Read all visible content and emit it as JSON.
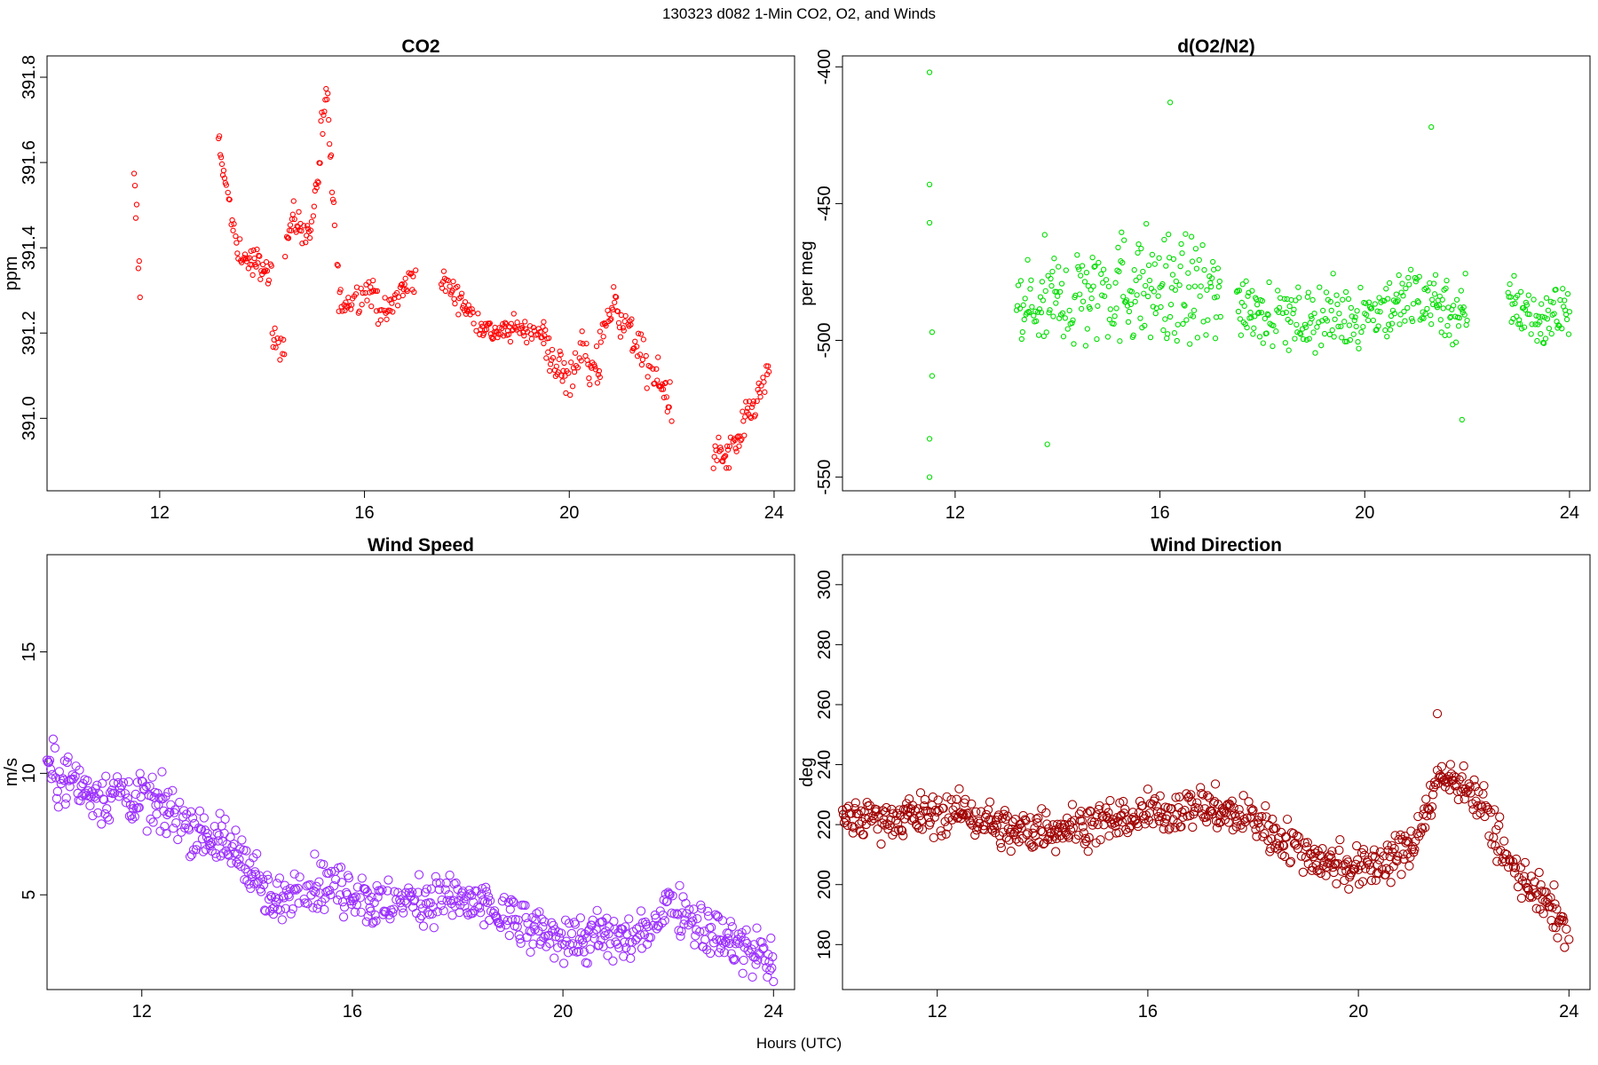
{
  "header": {
    "title": "130323   d082   1-Min CO2, O2, and Winds"
  },
  "footer": {
    "xlabel": "Hours (UTC)"
  },
  "chart_data": [
    {
      "type": "scatter",
      "title": "CO2",
      "xlabel": "Hours (UTC)",
      "ylabel": "ppm",
      "xlim": [
        9.8,
        24.4
      ],
      "ylim": [
        390.83,
        391.85
      ],
      "x_ticks": [
        12,
        16,
        20,
        24
      ],
      "y_ticks": [
        391.0,
        391.2,
        391.4,
        391.6,
        391.8
      ],
      "y_tick_labels": [
        "391.0",
        "391.2",
        "391.4",
        "391.6",
        "391.8"
      ],
      "color": "#ff0000",
      "marker": "small-open-circle",
      "grid": false,
      "segments": [
        {
          "x0": 11.5,
          "x1": 11.62,
          "knots": [
            [
              11.5,
              391.53
            ],
            [
              11.55,
              391.45
            ],
            [
              11.6,
              391.33
            ]
          ],
          "noise": 0.06
        },
        {
          "x0": 13.15,
          "x1": 14.2,
          "knots": [
            [
              13.15,
              391.66
            ],
            [
              13.35,
              391.5
            ],
            [
              13.5,
              391.4
            ],
            [
              13.7,
              391.37
            ],
            [
              14.0,
              391.36
            ],
            [
              14.2,
              391.32
            ]
          ],
          "noise": 0.025
        },
        {
          "x0": 14.2,
          "x1": 14.45,
          "knots": [
            [
              14.2,
              391.19
            ],
            [
              14.45,
              391.17
            ]
          ],
          "noise": 0.025
        },
        {
          "x0": 14.45,
          "x1": 15.0,
          "knots": [
            [
              14.45,
              391.4
            ],
            [
              14.6,
              391.47
            ],
            [
              14.8,
              391.44
            ],
            [
              15.0,
              391.45
            ]
          ],
          "noise": 0.025
        },
        {
          "x0": 15.0,
          "x1": 15.5,
          "knots": [
            [
              15.0,
              391.48
            ],
            [
              15.2,
              391.7
            ],
            [
              15.3,
              391.72
            ],
            [
              15.4,
              391.45
            ],
            [
              15.5,
              391.3
            ]
          ],
          "noise": 0.05
        },
        {
          "x0": 15.5,
          "x1": 17.0,
          "knots": [
            [
              15.5,
              391.27
            ],
            [
              15.8,
              391.28
            ],
            [
              16.1,
              391.3
            ],
            [
              16.4,
              391.24
            ],
            [
              16.8,
              391.31
            ],
            [
              17.0,
              391.33
            ]
          ],
          "noise": 0.025
        },
        {
          "x0": 17.5,
          "x1": 19.5,
          "knots": [
            [
              17.5,
              391.32
            ],
            [
              17.8,
              391.29
            ],
            [
              18.1,
              391.24
            ],
            [
              18.5,
              391.2
            ],
            [
              19.0,
              391.21
            ],
            [
              19.5,
              391.2
            ]
          ],
          "noise": 0.02
        },
        {
          "x0": 19.5,
          "x1": 20.6,
          "knots": [
            [
              19.5,
              391.18
            ],
            [
              19.8,
              391.12
            ],
            [
              20.0,
              391.08
            ],
            [
              20.2,
              391.17
            ],
            [
              20.4,
              391.1
            ],
            [
              20.6,
              391.12
            ]
          ],
          "noise": 0.035
        },
        {
          "x0": 20.6,
          "x1": 22.0,
          "knots": [
            [
              20.6,
              391.2
            ],
            [
              20.9,
              391.27
            ],
            [
              21.2,
              391.2
            ],
            [
              21.5,
              391.12
            ],
            [
              21.8,
              391.08
            ],
            [
              22.0,
              391.03
            ]
          ],
          "noise": 0.035
        },
        {
          "x0": 22.8,
          "x1": 23.9,
          "knots": [
            [
              22.8,
              390.93
            ],
            [
              23.0,
              390.9
            ],
            [
              23.3,
              390.95
            ],
            [
              23.6,
              391.03
            ],
            [
              23.9,
              391.1
            ]
          ],
          "noise": 0.03
        }
      ]
    },
    {
      "type": "scatter",
      "title": "d(O2/N2)",
      "xlabel": "Hours (UTC)",
      "ylabel": "per meg",
      "xlim": [
        9.8,
        24.4
      ],
      "ylim": [
        -555,
        -396
      ],
      "x_ticks": [
        12,
        16,
        20,
        24
      ],
      "y_ticks": [
        -550,
        -500,
        -450,
        -400
      ],
      "y_tick_labels": [
        "-550",
        "-500",
        "-450",
        "-400"
      ],
      "color": "#00dd00",
      "marker": "small-open-circle",
      "grid": false,
      "outliers": [
        [
          11.5,
          -402
        ],
        [
          11.5,
          -443
        ],
        [
          11.5,
          -457
        ],
        [
          11.55,
          -497
        ],
        [
          11.55,
          -513
        ],
        [
          11.5,
          -536
        ],
        [
          11.5,
          -550
        ],
        [
          16.2,
          -413
        ],
        [
          21.3,
          -422
        ],
        [
          13.8,
          -538
        ],
        [
          21.9,
          -529
        ]
      ],
      "segments": [
        {
          "x0": 13.2,
          "x1": 17.2,
          "knots": [
            [
              13.2,
              -490
            ],
            [
              14.5,
              -483
            ],
            [
              15.5,
              -480
            ],
            [
              16.5,
              -482
            ],
            [
              17.2,
              -485
            ]
          ],
          "noise": 15
        },
        {
          "x0": 17.5,
          "x1": 22.0,
          "knots": [
            [
              17.5,
              -485
            ],
            [
              18.5,
              -492
            ],
            [
              19.5,
              -492
            ],
            [
              20.5,
              -488
            ],
            [
              21.2,
              -483
            ],
            [
              22.0,
              -492
            ]
          ],
          "noise": 9
        },
        {
          "x0": 22.8,
          "x1": 24.0,
          "knots": [
            [
              22.8,
              -485
            ],
            [
              23.4,
              -493
            ],
            [
              24.0,
              -487
            ]
          ],
          "noise": 8
        }
      ]
    },
    {
      "type": "scatter",
      "title": "Wind Speed",
      "xlabel": "Hours (UTC)",
      "ylabel": "m/s",
      "xlim": [
        10.2,
        24.4
      ],
      "ylim": [
        1.1,
        19.0
      ],
      "x_ticks": [
        12,
        16,
        20,
        24
      ],
      "y_ticks": [
        5,
        10,
        15
      ],
      "y_tick_labels": [
        "5",
        "10",
        "15"
      ],
      "color": "#9b30ff",
      "marker": "open-circle",
      "grid": false,
      "segments": [
        {
          "x0": 10.2,
          "x1": 24.0,
          "knots": [
            [
              10.2,
              10.2
            ],
            [
              11.0,
              9.2
            ],
            [
              12.0,
              9.0
            ],
            [
              13.0,
              7.8
            ],
            [
              14.0,
              6.5
            ],
            [
              14.5,
              4.5
            ],
            [
              15.0,
              5.5
            ],
            [
              16.0,
              5.2
            ],
            [
              16.5,
              4.5
            ],
            [
              17.5,
              4.9
            ],
            [
              18.5,
              4.5
            ],
            [
              19.5,
              3.4
            ],
            [
              20.5,
              3.2
            ],
            [
              21.5,
              3.2
            ],
            [
              22.0,
              4.8
            ],
            [
              23.0,
              3.2
            ],
            [
              24.0,
              2.3
            ]
          ],
          "noise": 0.75
        }
      ]
    },
    {
      "type": "scatter",
      "title": "Wind Direction",
      "xlabel": "Hours (UTC)",
      "ylabel": "deg",
      "xlim": [
        10.2,
        24.4
      ],
      "ylim": [
        165,
        310
      ],
      "x_ticks": [
        12,
        16,
        20,
        24
      ],
      "y_ticks": [
        180,
        200,
        220,
        240,
        260,
        280,
        300
      ],
      "y_tick_labels": [
        "180",
        "200",
        "220",
        "240",
        "260",
        "280",
        "300"
      ],
      "color": "#a00000",
      "marker": "open-circle",
      "grid": false,
      "outliers": [
        [
          21.5,
          257
        ]
      ],
      "segments": [
        {
          "x0": 10.2,
          "x1": 24.0,
          "knots": [
            [
              10.2,
              222
            ],
            [
              12.5,
              224
            ],
            [
              13.5,
              217
            ],
            [
              15.5,
              222
            ],
            [
              17.0,
              226
            ],
            [
              18.0,
              222
            ],
            [
              19.0,
              210
            ],
            [
              20.0,
              205
            ],
            [
              20.5,
              208
            ],
            [
              21.0,
              212
            ],
            [
              21.5,
              235
            ],
            [
              22.0,
              235
            ],
            [
              22.4,
              225
            ],
            [
              22.8,
              208
            ],
            [
              23.5,
              195
            ],
            [
              24.0,
              185
            ]
          ],
          "noise": 5
        }
      ]
    }
  ]
}
